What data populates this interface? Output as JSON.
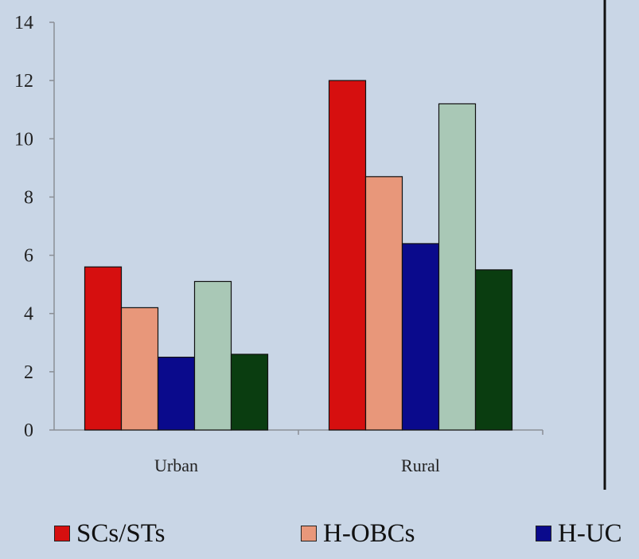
{
  "chart_data": {
    "type": "bar",
    "categories": [
      "Urban",
      "Rural"
    ],
    "series": [
      {
        "name": "SCs/STs",
        "values": [
          5.6,
          12.0
        ],
        "color": "#d60f0f"
      },
      {
        "name": "H-OBCs",
        "values": [
          4.2,
          8.7
        ],
        "color": "#e8977a"
      },
      {
        "name": "H-UC",
        "values": [
          2.5,
          6.4
        ],
        "color": "#0a0a8c"
      },
      {
        "name": "",
        "values": [
          5.1,
          11.2
        ],
        "color": "#a9c8b6"
      },
      {
        "name": "",
        "values": [
          2.6,
          5.5
        ],
        "color": "#0a3d10"
      }
    ],
    "ylim": [
      0,
      14
    ],
    "yticks": [
      "0",
      "2",
      "4",
      "6",
      "8",
      "10",
      "12",
      "14"
    ],
    "title": "",
    "xlabel": "",
    "ylabel": "",
    "grid": false,
    "legend_position": "bottom"
  }
}
